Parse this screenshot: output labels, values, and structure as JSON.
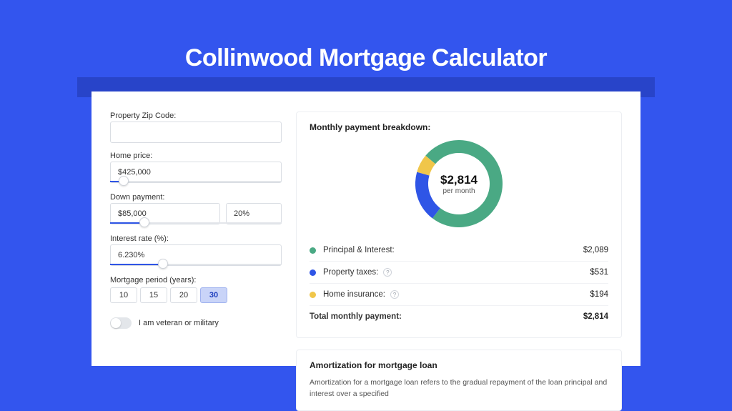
{
  "page": {
    "title": "Collinwood Mortgage Calculator",
    "colors": {
      "page_bg": "#3355ee",
      "shadow_bar": "#2844c9",
      "panel_bg": "#ffffff",
      "border": "#d9dde3",
      "slider_fill": "#2f55e6",
      "period_selected_bg": "#c9d4f8"
    }
  },
  "form": {
    "zip_label": "Property Zip Code:",
    "zip_value": "",
    "home_price_label": "Home price:",
    "home_price_value": "$425,000",
    "home_price_slider_pct": 8,
    "down_payment_label": "Down payment:",
    "down_payment_value": "$85,000",
    "down_payment_pct_value": "20%",
    "down_payment_slider_pct": 20,
    "interest_label": "Interest rate (%):",
    "interest_value": "6.230%",
    "interest_slider_pct": 31,
    "period_label": "Mortgage period (years):",
    "periods": [
      {
        "label": "10",
        "selected": false
      },
      {
        "label": "15",
        "selected": false
      },
      {
        "label": "20",
        "selected": false
      },
      {
        "label": "30",
        "selected": true
      }
    ],
    "veteran_label": "I am veteran or military",
    "veteran_on": false
  },
  "breakdown": {
    "title": "Monthly payment breakdown:",
    "donut": {
      "center_value": "$2,814",
      "center_sub": "per month",
      "slices": [
        {
          "name": "Principal & Interest",
          "color": "#4aa984",
          "pct": 74.2
        },
        {
          "name": "Property taxes",
          "color": "#2f55e6",
          "pct": 18.9
        },
        {
          "name": "Home insurance",
          "color": "#f0c64a",
          "pct": 6.9
        }
      ],
      "stroke_width": 18
    },
    "rows": [
      {
        "label": "Principal & Interest:",
        "color": "#4aa984",
        "value": "$2,089",
        "help": false
      },
      {
        "label": "Property taxes:",
        "color": "#2f55e6",
        "value": "$531",
        "help": true
      },
      {
        "label": "Home insurance:",
        "color": "#f0c64a",
        "value": "$194",
        "help": true
      }
    ],
    "total_label": "Total monthly payment:",
    "total_value": "$2,814"
  },
  "amortization": {
    "title": "Amortization for mortgage loan",
    "text": "Amortization for a mortgage loan refers to the gradual repayment of the loan principal and interest over a specified"
  }
}
